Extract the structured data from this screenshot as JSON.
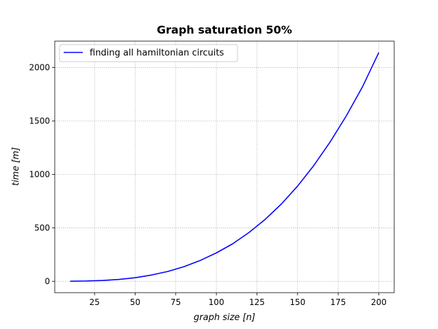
{
  "chart_data": {
    "type": "line",
    "title": "Graph saturation 50%",
    "xlabel": "graph size [n]",
    "ylabel": "time [m]",
    "xlim": [
      0.5,
      209.5
    ],
    "ylim": [
      -107,
      2247
    ],
    "xticks": [
      25,
      50,
      75,
      100,
      125,
      150,
      175,
      200
    ],
    "yticks": [
      0,
      500,
      1000,
      1500,
      2000
    ],
    "grid": true,
    "legend_position": "top-left",
    "series": [
      {
        "name": "finding all hamiltonian circuits",
        "color": "#0000ff",
        "x": [
          10,
          20,
          30,
          40,
          50,
          60,
          70,
          80,
          90,
          100,
          110,
          120,
          130,
          140,
          150,
          160,
          170,
          180,
          190,
          200
        ],
        "y": [
          0.3,
          2,
          7,
          17,
          33,
          58,
          91,
          136,
          194,
          265,
          350,
          455,
          578,
          722,
          890,
          1083,
          1302,
          1547,
          1820,
          2140
        ]
      }
    ]
  }
}
